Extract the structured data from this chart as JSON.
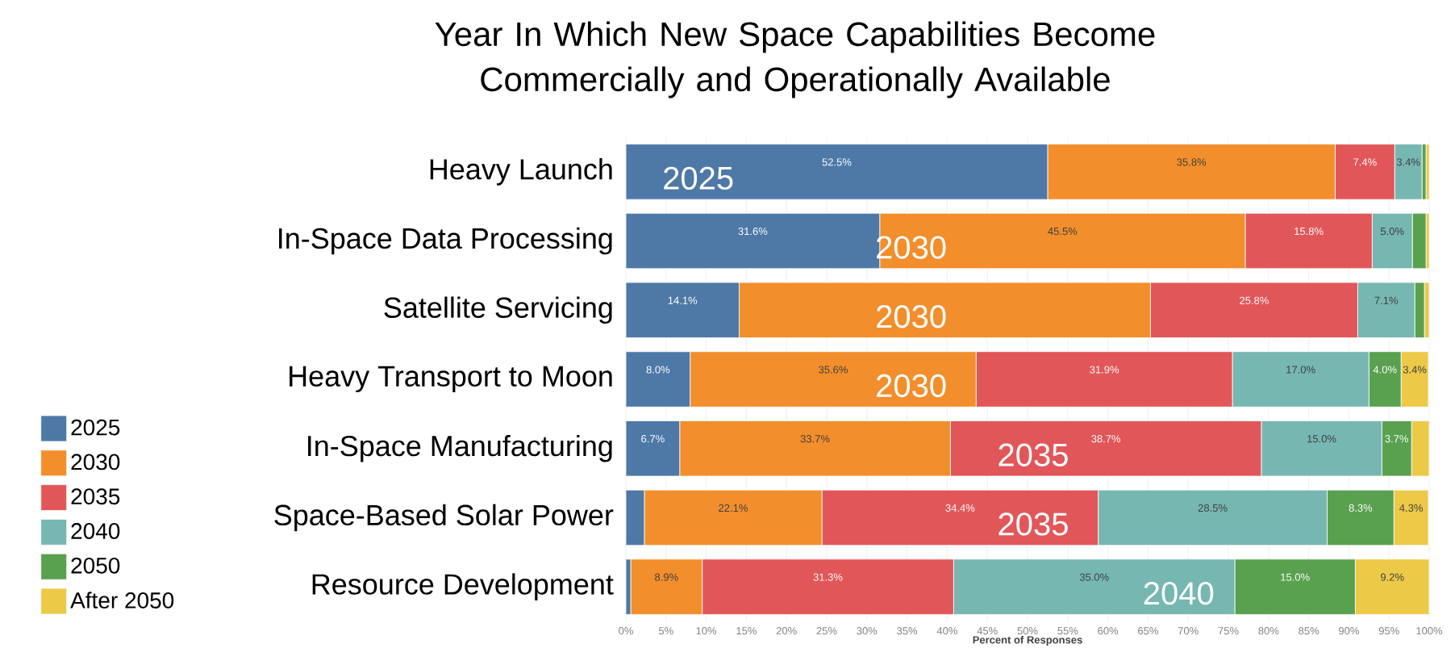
{
  "chart_data": {
    "type": "bar",
    "orientation": "horizontal",
    "stacked": true,
    "title": "Year In Which New Space Capabilities Become Commercially and Operationally Available",
    "xlabel": "Percent of Responses",
    "categories": [
      "Heavy Launch",
      "In-Space Data Processing",
      "Satellite Servicing",
      "Heavy Transport to Moon",
      "In-Space Manufacturing",
      "Space-Based Solar Power",
      "Resource Development"
    ],
    "series": [
      {
        "name": "2025",
        "color": "#4e79a7",
        "values": [
          52.5,
          31.6,
          14.1,
          8.0,
          6.7,
          2.3,
          0.6
        ],
        "value_labels": [
          "52.5%",
          "31.6%",
          "14.1%",
          "8.0%",
          "6.7%",
          null,
          null
        ]
      },
      {
        "name": "2030",
        "color": "#f28e2b",
        "values": [
          35.8,
          45.5,
          51.2,
          35.6,
          33.7,
          22.1,
          8.9
        ],
        "value_labels": [
          "35.8%",
          "45.5%",
          null,
          "35.6%",
          "33.7%",
          "22.1%",
          "8.9%"
        ]
      },
      {
        "name": "2035",
        "color": "#e15759",
        "values": [
          7.4,
          15.8,
          25.8,
          31.9,
          38.7,
          34.4,
          31.3
        ],
        "value_labels": [
          "7.4%",
          "15.8%",
          "25.8%",
          "31.9%",
          "38.7%",
          "34.4%",
          "31.3%"
        ]
      },
      {
        "name": "2040",
        "color": "#76b7b2",
        "values": [
          3.4,
          5.0,
          7.1,
          17.0,
          15.0,
          28.5,
          35.0
        ],
        "value_labels": [
          "3.4%",
          "5.0%",
          "7.1%",
          "17.0%",
          "15.0%",
          "28.5%",
          "35.0%"
        ]
      },
      {
        "name": "2050",
        "color": "#59a14f",
        "values": [
          0.5,
          1.7,
          1.2,
          4.0,
          3.7,
          8.3,
          15.0
        ],
        "value_labels": [
          null,
          null,
          null,
          "4.0%",
          "3.7%",
          "8.3%",
          "15.0%"
        ]
      },
      {
        "name": "After 2050",
        "color": "#edc948",
        "values": [
          0.4,
          0.4,
          0.6,
          3.4,
          2.2,
          4.3,
          9.2
        ],
        "value_labels": [
          null,
          null,
          null,
          "3.4%",
          null,
          "4.3%",
          "9.2%"
        ]
      }
    ],
    "xlim": [
      0,
      100
    ],
    "xticks": [
      {
        "value": 0,
        "label": "0%"
      },
      {
        "value": 5,
        "label": "5%"
      },
      {
        "value": 10,
        "label": "10%"
      },
      {
        "value": 15,
        "label": "15%"
      },
      {
        "value": 20,
        "label": "20%"
      },
      {
        "value": 25,
        "label": "25%"
      },
      {
        "value": 30,
        "label": "30%"
      },
      {
        "value": 35,
        "label": "35%"
      },
      {
        "value": 40,
        "label": "40%"
      },
      {
        "value": 45,
        "label": "45%"
      },
      {
        "value": 50,
        "label": "50%"
      },
      {
        "value": 55,
        "label": "55%"
      },
      {
        "value": 60,
        "label": "60%"
      },
      {
        "value": 65,
        "label": "65%"
      },
      {
        "value": 70,
        "label": "70%"
      },
      {
        "value": 75,
        "label": "75%"
      },
      {
        "value": 80,
        "label": "80%"
      },
      {
        "value": 85,
        "label": "85%"
      },
      {
        "value": 90,
        "label": "90%"
      },
      {
        "value": 95,
        "label": "95%"
      },
      {
        "value": 100,
        "label": "100%"
      }
    ],
    "annotations": [
      {
        "text": "2025",
        "x": 9,
        "y": "Heavy Launch"
      },
      {
        "text": "2030",
        "x": 35.5,
        "y": "In-Space Data Processing"
      },
      {
        "text": "2030",
        "x": 35.5,
        "y": "Satellite Servicing"
      },
      {
        "text": "2030",
        "x": 35.5,
        "y": "Heavy Transport to Moon"
      },
      {
        "text": "2035",
        "x": 50.7,
        "y": "In-Space Manufacturing"
      },
      {
        "text": "2035",
        "x": 50.7,
        "y": "Space-Based Solar Power"
      },
      {
        "text": "2040",
        "x": 68.8,
        "y": "Resource Development"
      }
    ],
    "grid": "x",
    "legend": "bottom left"
  }
}
